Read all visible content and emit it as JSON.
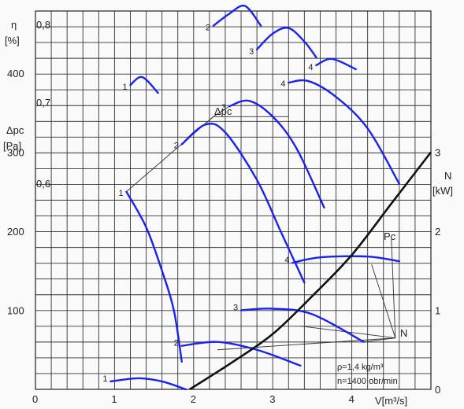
{
  "chart_data": {
    "type": "line",
    "x_axis": {
      "label": "V[m³/s]",
      "ticks": [
        "0",
        "1",
        "2",
        "3",
        "4"
      ],
      "range": [
        0,
        5
      ]
    },
    "y_pressure": {
      "label_top": "Δpc",
      "label_bottom": "[Pa]",
      "ticks": [
        "100",
        "200",
        "300",
        "400"
      ],
      "range": [
        0,
        450
      ]
    },
    "y_efficiency": {
      "label_top": "η",
      "label_bottom": "[%]",
      "ticks": [
        "0,6",
        "0,7",
        "0,8"
      ]
    },
    "y_power": {
      "label_top": "N",
      "label_bottom": "[kW]",
      "ticks": [
        "0",
        "1",
        "2",
        "3"
      ],
      "range": [
        0,
        3.7
      ]
    },
    "pressure_curves": [
      {
        "label": "1",
        "points": [
          [
            1.15,
            250
          ],
          [
            1.4,
            205
          ],
          [
            1.6,
            150
          ],
          [
            1.75,
            100
          ],
          [
            1.85,
            35
          ]
        ]
      },
      {
        "label": "2",
        "points": [
          [
            1.85,
            310
          ],
          [
            2.15,
            335
          ],
          [
            2.4,
            325
          ],
          [
            2.8,
            265
          ],
          [
            3.1,
            200
          ],
          [
            3.4,
            135
          ]
        ]
      },
      {
        "label": "3",
        "points": [
          [
            2.45,
            358
          ],
          [
            2.7,
            365
          ],
          [
            3.0,
            345
          ],
          [
            3.3,
            305
          ],
          [
            3.65,
            230
          ]
        ]
      },
      {
        "label": "4",
        "points": [
          [
            3.2,
            388
          ],
          [
            3.45,
            390
          ],
          [
            3.8,
            370
          ],
          [
            4.2,
            330
          ],
          [
            4.6,
            260
          ]
        ]
      }
    ],
    "efficiency_curves": [
      {
        "label": "1",
        "points": [
          [
            1.2,
            385
          ],
          [
            1.35,
            395
          ],
          [
            1.55,
            375
          ]
        ]
      },
      {
        "label": "2",
        "points": [
          [
            2.25,
            460
          ],
          [
            2.45,
            475
          ],
          [
            2.65,
            485
          ],
          [
            2.85,
            460
          ]
        ]
      },
      {
        "label": "3",
        "points": [
          [
            2.8,
            430
          ],
          [
            3.0,
            450
          ],
          [
            3.2,
            457
          ],
          [
            3.4,
            440
          ],
          [
            3.55,
            420
          ]
        ]
      },
      {
        "label": "4",
        "points": [
          [
            3.55,
            410
          ],
          [
            3.75,
            418
          ],
          [
            4.05,
            405
          ]
        ]
      }
    ],
    "power_curves": [
      {
        "label": "1",
        "points": [
          [
            0.95,
            0.1
          ],
          [
            1.3,
            0.14
          ],
          [
            1.6,
            0.1
          ],
          [
            1.9,
            0.0
          ]
        ]
      },
      {
        "label": "2",
        "points": [
          [
            1.85,
            0.55
          ],
          [
            2.3,
            0.6
          ],
          [
            2.8,
            0.5
          ],
          [
            3.35,
            0.3
          ]
        ]
      },
      {
        "label": "3",
        "points": [
          [
            2.6,
            1.0
          ],
          [
            3.0,
            1.02
          ],
          [
            3.5,
            0.95
          ],
          [
            4.15,
            0.6
          ]
        ]
      },
      {
        "label": "4",
        "points": [
          [
            3.25,
            1.6
          ],
          [
            3.6,
            1.67
          ],
          [
            4.2,
            1.68
          ],
          [
            4.6,
            1.62
          ]
        ]
      }
    ],
    "system_curve": {
      "label": "Pc",
      "points": [
        [
          1.95,
          0
        ],
        [
          2.5,
          35
        ],
        [
          3.0,
          70
        ],
        [
          3.5,
          118
        ],
        [
          4.0,
          170
        ],
        [
          4.5,
          235
        ],
        [
          5.0,
          300
        ]
      ]
    },
    "annotations": [
      "Δpc",
      "Pc",
      "N",
      "ρ=1,4 kg/m³",
      "n=1400 obr/min"
    ]
  }
}
